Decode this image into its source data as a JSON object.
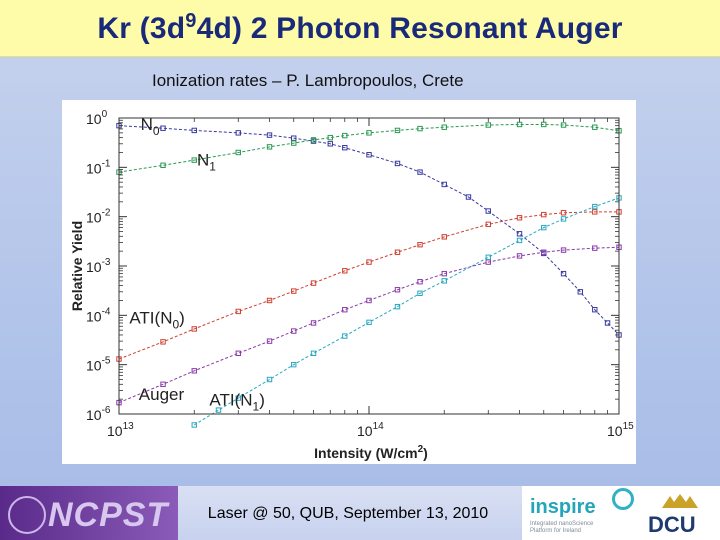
{
  "title_main": "Kr (3d",
  "title_sup": "9",
  "title_rest": "4d) 2 Photon Resonant Auger",
  "subtitle": "Ionization rates – P. Lambropoulos, Crete",
  "footer": {
    "left_logo": "NCPST",
    "center_text": "Laser @ 50, QUB, September 13, 2010",
    "inspire_logo": "inspire",
    "inspire_tagline": "Integrated nanoScience Platform for Ireland",
    "dcu_logo": "DCU"
  },
  "chart_data": {
    "type": "line",
    "title": "",
    "xlabel": "Intensity (W/cm²)",
    "ylabel": "Relative Yield",
    "x_scale": "log",
    "y_scale": "log",
    "xlim": [
      10000000000000.0,
      1000000000000000.0
    ],
    "ylim": [
      1e-06,
      1
    ],
    "x_ticks": [
      {
        "value": 10000000000000.0,
        "base": "10",
        "exp": "13"
      },
      {
        "value": 100000000000000.0,
        "base": "10",
        "exp": "14"
      },
      {
        "value": 1000000000000000.0,
        "base": "10",
        "exp": "15"
      }
    ],
    "y_ticks": [
      {
        "value": 1,
        "base": "10",
        "exp": "0"
      },
      {
        "value": 0.1,
        "base": "10",
        "exp": "-1"
      },
      {
        "value": 0.01,
        "base": "10",
        "exp": "-2"
      },
      {
        "value": 0.001,
        "base": "10",
        "exp": "-3"
      },
      {
        "value": 0.0001,
        "base": "10",
        "exp": "-4"
      },
      {
        "value": 1e-05,
        "base": "10",
        "exp": "-5"
      },
      {
        "value": 1e-06,
        "base": "10",
        "exp": "-6"
      }
    ],
    "annotations": [
      {
        "id": "n0",
        "text": "N",
        "sub": "0",
        "x": 12200000000000.0,
        "y": 0.57
      },
      {
        "id": "n1",
        "text": "N",
        "sub": "1",
        "x": 20500000000000.0,
        "y": 0.11
      },
      {
        "id": "atin0",
        "text": "ATI(N",
        "sub": "0",
        "tail": ")",
        "x": 11000000000000.0,
        "y": 6.9e-05
      },
      {
        "id": "auger",
        "text": "Auger",
        "x": 12000000000000.0,
        "y": 1.9e-06
      },
      {
        "id": "atin1",
        "text": "ATI(N",
        "sub": "1",
        "tail": ")",
        "x": 23000000000000.0,
        "y": 1.5e-06
      }
    ],
    "series": [
      {
        "key": "N0",
        "color": "#3a3aa0",
        "x": [
          10000000000000.0,
          15000000000000.0,
          20000000000000.0,
          30000000000000.0,
          40000000000000.0,
          50000000000000.0,
          60000000000000.0,
          70000000000000.0,
          80000000000000.0,
          100000000000000.0,
          130000000000000.0,
          160000000000000.0,
          200000000000000.0,
          250000000000000.0,
          300000000000000.0,
          400000000000000.0,
          500000000000000.0,
          600000000000000.0,
          700000000000000.0,
          800000000000000.0,
          900000000000000.0,
          1000000000000000.0
        ],
        "y": [
          0.7,
          0.62,
          0.56,
          0.5,
          0.45,
          0.39,
          0.34,
          0.3,
          0.25,
          0.18,
          0.12,
          0.08,
          0.045,
          0.025,
          0.013,
          0.0045,
          0.0018,
          0.0007,
          0.0003,
          0.00013,
          7e-05,
          4e-05
        ]
      },
      {
        "key": "N1",
        "color": "#2a9a52",
        "x": [
          10000000000000.0,
          15000000000000.0,
          20000000000000.0,
          30000000000000.0,
          40000000000000.0,
          50000000000000.0,
          60000000000000.0,
          70000000000000.0,
          80000000000000.0,
          100000000000000.0,
          130000000000000.0,
          160000000000000.0,
          200000000000000.0,
          300000000000000.0,
          400000000000000.0,
          500000000000000.0,
          600000000000000.0,
          800000000000000.0,
          1000000000000000.0
        ],
        "y": [
          0.08,
          0.11,
          0.14,
          0.2,
          0.26,
          0.31,
          0.36,
          0.4,
          0.44,
          0.5,
          0.56,
          0.61,
          0.65,
          0.72,
          0.74,
          0.74,
          0.72,
          0.65,
          0.55
        ]
      },
      {
        "key": "ATI(N0)",
        "color": "#d04030",
        "x": [
          10000000000000.0,
          15000000000000.0,
          20000000000000.0,
          30000000000000.0,
          40000000000000.0,
          50000000000000.0,
          60000000000000.0,
          80000000000000.0,
          100000000000000.0,
          130000000000000.0,
          160000000000000.0,
          200000000000000.0,
          300000000000000.0,
          400000000000000.0,
          500000000000000.0,
          600000000000000.0,
          800000000000000.0,
          1000000000000000.0
        ],
        "y": [
          1.3e-05,
          2.9e-05,
          5.3e-05,
          0.00012,
          0.0002,
          0.00031,
          0.00045,
          0.0008,
          0.0012,
          0.0019,
          0.0027,
          0.0039,
          0.007,
          0.0095,
          0.011,
          0.012,
          0.0125,
          0.0125
        ]
      },
      {
        "key": "Auger",
        "color": "#8a3aa8",
        "x": [
          10000000000000.0,
          15000000000000.0,
          20000000000000.0,
          30000000000000.0,
          40000000000000.0,
          50000000000000.0,
          60000000000000.0,
          80000000000000.0,
          100000000000000.0,
          130000000000000.0,
          160000000000000.0,
          200000000000000.0,
          300000000000000.0,
          400000000000000.0,
          500000000000000.0,
          600000000000000.0,
          800000000000000.0,
          1000000000000000.0
        ],
        "y": [
          1.7e-06,
          4e-06,
          7.5e-06,
          1.7e-05,
          3e-05,
          4.8e-05,
          7e-05,
          0.00013,
          0.0002,
          0.00033,
          0.00048,
          0.0007,
          0.0012,
          0.0016,
          0.0019,
          0.0021,
          0.0023,
          0.0024
        ]
      },
      {
        "key": "ATI(N1)",
        "color": "#28a8c0",
        "x": [
          20000000000000.0,
          25000000000000.0,
          30000000000000.0,
          40000000000000.0,
          50000000000000.0,
          60000000000000.0,
          80000000000000.0,
          100000000000000.0,
          130000000000000.0,
          160000000000000.0,
          200000000000000.0,
          300000000000000.0,
          400000000000000.0,
          500000000000000.0,
          600000000000000.0,
          800000000000000.0,
          1000000000000000.0
        ],
        "y": [
          6e-07,
          1.2e-06,
          2.1e-06,
          5e-06,
          1e-05,
          1.7e-05,
          3.8e-05,
          7.2e-05,
          0.00015,
          0.00028,
          0.0005,
          0.0015,
          0.0033,
          0.006,
          0.009,
          0.016,
          0.024
        ]
      }
    ]
  }
}
